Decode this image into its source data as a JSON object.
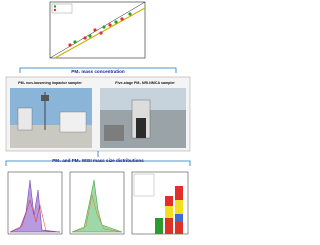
{
  "scatter_heading": "PM₁ mass concentration",
  "photos": [
    {
      "caption": "PM₁ non-loosening impactor sampler"
    },
    {
      "caption": "Five-stage PM₁ NRI-NMCA sampler"
    }
  ],
  "distribution_heading": "PM₁ and PM₁ WSII mass size distributions"
}
